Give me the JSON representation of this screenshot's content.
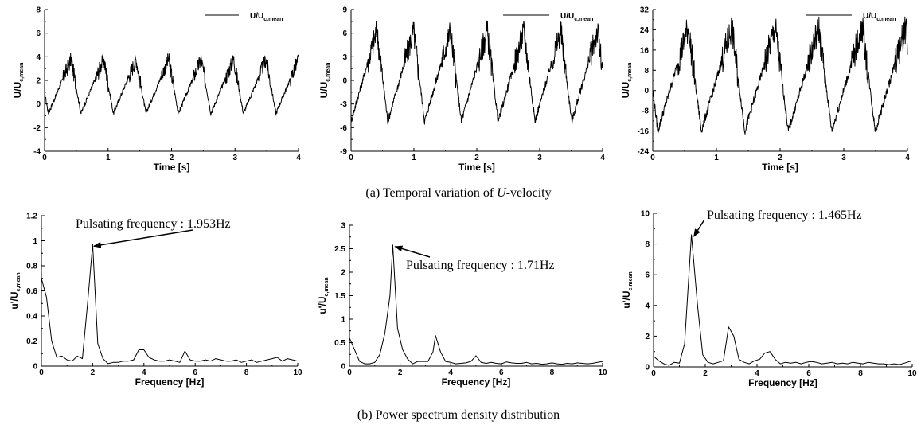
{
  "captions": {
    "a_prefix": "(a) Temporal variation of ",
    "a_italic": "U",
    "a_suffix": "-velocity",
    "b": "(b) Power spectrum density distribution"
  },
  "chart_data": [
    {
      "type": "line",
      "xlabel": "Time [s]",
      "ylabel_main": "U/U",
      "ylabel_sub": "c,mean",
      "legend": "U/U",
      "legend_sub": "c,mean",
      "xlim": [
        0,
        4
      ],
      "ylim": [
        -4,
        8
      ],
      "xticks": [
        0,
        1,
        2,
        3,
        4
      ],
      "yticks": [
        -4,
        -2,
        0,
        2,
        4,
        6,
        8
      ],
      "period": 0.512,
      "phase": 0.06,
      "min": -0.8,
      "peak": 3.8,
      "series": [
        {
          "values": []
        }
      ]
    },
    {
      "type": "line",
      "xlabel": "Time [s]",
      "ylabel_main": "U/U",
      "ylabel_sub": "c,mean",
      "legend": "U/U",
      "legend_sub": "c,mean",
      "xlim": [
        0,
        4
      ],
      "ylim": [
        -9,
        9
      ],
      "xticks": [
        0,
        1,
        2,
        3,
        4
      ],
      "yticks": [
        -9,
        -6,
        -3,
        0,
        3,
        6,
        9
      ],
      "period": 0.585,
      "phase": 0.0,
      "min": -5.2,
      "peak": 6.3,
      "series": [
        {
          "values": []
        }
      ]
    },
    {
      "type": "line",
      "xlabel": "Time [s]",
      "ylabel_main": "U/U",
      "ylabel_sub": "c,mean",
      "legend": "U/U",
      "legend_sub": "c,mean",
      "xlim": [
        0,
        4
      ],
      "ylim": [
        -24,
        32
      ],
      "xticks": [
        0,
        1,
        2,
        3,
        4
      ],
      "yticks": [
        -24,
        -16,
        -8,
        0,
        8,
        16,
        24,
        32
      ],
      "period": 0.683,
      "phase": 0.08,
      "min": -16,
      "peak": 25,
      "series": [
        {
          "values": []
        }
      ]
    },
    {
      "type": "line",
      "xlabel": "Frequency [Hz]",
      "ylabel_main": "u'/U",
      "ylabel_sub": "c,mean",
      "annotation": "Pulsating frequency : 1.953Hz",
      "xlim": [
        0,
        10
      ],
      "ylim": [
        0,
        1.2
      ],
      "xticks": [
        0,
        2,
        4,
        6,
        8,
        10
      ],
      "yticks": [
        0,
        0.2,
        0.4,
        0.6,
        0.8,
        1,
        1.2
      ],
      "peak_x": 1.953,
      "peak_y": 0.97,
      "x": [
        0,
        0.2,
        0.4,
        0.6,
        0.8,
        1.0,
        1.2,
        1.4,
        1.6,
        1.8,
        2.0,
        2.2,
        2.4,
        2.6,
        2.8,
        3.0,
        3.2,
        3.4,
        3.6,
        3.8,
        4.0,
        4.2,
        4.4,
        4.6,
        4.8,
        5.0,
        5.2,
        5.4,
        5.6,
        5.8,
        6.0,
        6.2,
        6.4,
        6.6,
        6.8,
        7.0,
        7.2,
        7.4,
        7.6,
        7.8,
        8.0,
        8.2,
        8.4,
        8.6,
        8.8,
        9.0,
        9.2,
        9.4,
        9.6,
        9.8,
        10.0
      ],
      "series": [
        {
          "values": [
            0.7,
            0.55,
            0.2,
            0.07,
            0.08,
            0.05,
            0.04,
            0.08,
            0.06,
            0.5,
            0.97,
            0.18,
            0.06,
            0.02,
            0.03,
            0.03,
            0.04,
            0.04,
            0.05,
            0.13,
            0.13,
            0.07,
            0.05,
            0.04,
            0.04,
            0.05,
            0.04,
            0.03,
            0.12,
            0.05,
            0.04,
            0.04,
            0.05,
            0.04,
            0.06,
            0.05,
            0.04,
            0.04,
            0.05,
            0.03,
            0.04,
            0.05,
            0.03,
            0.04,
            0.05,
            0.06,
            0.07,
            0.04,
            0.06,
            0.05,
            0.04
          ]
        }
      ]
    },
    {
      "type": "line",
      "xlabel": "Frequency [Hz]",
      "ylabel_main": "u'/U",
      "ylabel_sub": "c,mean",
      "annotation": "Pulsating frequency : 1.71Hz",
      "xlim": [
        0,
        10
      ],
      "ylim": [
        0,
        3
      ],
      "xticks": [
        0,
        2,
        4,
        6,
        8,
        10
      ],
      "yticks": [
        0,
        0.5,
        1,
        1.5,
        2,
        2.5,
        3
      ],
      "peak_x": 1.71,
      "peak_y": 2.58,
      "x": [
        0,
        0.2,
        0.4,
        0.6,
        0.8,
        1.0,
        1.2,
        1.4,
        1.6,
        1.71,
        1.9,
        2.1,
        2.3,
        2.5,
        2.7,
        2.9,
        3.1,
        3.3,
        3.4,
        3.6,
        3.8,
        4.0,
        4.2,
        4.4,
        4.6,
        4.8,
        5.0,
        5.2,
        5.4,
        5.6,
        5.8,
        6.0,
        6.2,
        6.4,
        6.6,
        6.8,
        7.0,
        7.2,
        7.4,
        7.6,
        7.8,
        8.0,
        8.2,
        8.4,
        8.6,
        8.8,
        9.0,
        9.2,
        9.4,
        9.6,
        9.8,
        10.0
      ],
      "series": [
        {
          "values": [
            0.6,
            0.35,
            0.1,
            0.05,
            0.05,
            0.08,
            0.25,
            0.7,
            1.5,
            2.58,
            0.8,
            0.35,
            0.15,
            0.05,
            0.1,
            0.1,
            0.1,
            0.3,
            0.65,
            0.3,
            0.1,
            0.08,
            0.05,
            0.06,
            0.07,
            0.1,
            0.22,
            0.08,
            0.06,
            0.08,
            0.06,
            0.05,
            0.09,
            0.07,
            0.06,
            0.06,
            0.08,
            0.05,
            0.06,
            0.04,
            0.05,
            0.07,
            0.05,
            0.04,
            0.06,
            0.05,
            0.07,
            0.06,
            0.05,
            0.06,
            0.08,
            0.1
          ]
        }
      ]
    },
    {
      "type": "line",
      "xlabel": "Frequency [Hz]",
      "ylabel_main": "u'/U",
      "ylabel_sub": "c,mean",
      "annotation": "Pulsating frequency : 1.465Hz",
      "xlim": [
        0,
        10
      ],
      "ylim": [
        0,
        10
      ],
      "xticks": [
        0,
        2,
        4,
        6,
        8,
        10
      ],
      "yticks": [
        0,
        2,
        4,
        6,
        8,
        10
      ],
      "peak_x": 1.465,
      "peak_y": 8.6,
      "x": [
        0,
        0.2,
        0.4,
        0.6,
        0.8,
        1.0,
        1.2,
        1.465,
        1.7,
        1.9,
        2.1,
        2.3,
        2.5,
        2.7,
        2.9,
        3.1,
        3.3,
        3.5,
        3.7,
        3.9,
        4.1,
        4.3,
        4.5,
        4.7,
        4.9,
        5.1,
        5.3,
        5.5,
        5.7,
        5.9,
        6.1,
        6.3,
        6.5,
        6.7,
        6.9,
        7.1,
        7.3,
        7.5,
        7.7,
        7.9,
        8.1,
        8.3,
        8.5,
        8.7,
        8.9,
        9.1,
        9.3,
        9.5,
        9.7,
        10.0
      ],
      "series": [
        {
          "values": [
            0.7,
            0.4,
            0.2,
            0.1,
            0.3,
            0.25,
            1.5,
            8.6,
            4.0,
            0.8,
            0.3,
            0.2,
            0.3,
            0.4,
            2.6,
            2.0,
            0.5,
            0.3,
            0.2,
            0.4,
            0.5,
            0.9,
            1.0,
            0.5,
            0.2,
            0.3,
            0.25,
            0.3,
            0.2,
            0.3,
            0.35,
            0.3,
            0.2,
            0.25,
            0.3,
            0.2,
            0.25,
            0.2,
            0.3,
            0.25,
            0.2,
            0.3,
            0.25,
            0.2,
            0.2,
            0.15,
            0.2,
            0.15,
            0.25,
            0.4
          ]
        }
      ]
    }
  ]
}
